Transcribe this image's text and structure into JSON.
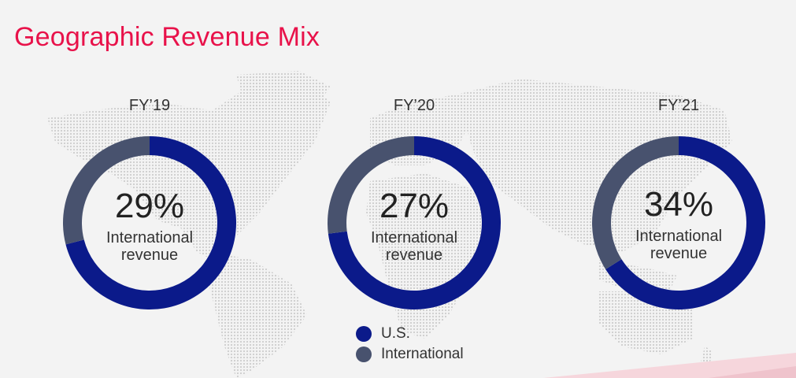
{
  "title": "Geographic Revenue Mix",
  "colors": {
    "us": "#0b1a8a",
    "international": "#48526e",
    "title": "#e8124a"
  },
  "chart_data": [
    {
      "type": "pie",
      "title": "FY’19",
      "center_value": "29%",
      "center_label": "International revenue",
      "slices": [
        {
          "name": "U.S.",
          "value": 71
        },
        {
          "name": "International",
          "value": 29
        }
      ]
    },
    {
      "type": "pie",
      "title": "FY’20",
      "center_value": "27%",
      "center_label": "International revenue",
      "slices": [
        {
          "name": "U.S.",
          "value": 73
        },
        {
          "name": "International",
          "value": 27
        }
      ]
    },
    {
      "type": "pie",
      "title": "FY’21",
      "center_value": "34%",
      "center_label": "International revenue",
      "slices": [
        {
          "name": "U.S.",
          "value": 66
        },
        {
          "name": "International",
          "value": 34
        }
      ]
    }
  ],
  "legend": {
    "items": [
      {
        "label": "U.S.",
        "color_key": "us"
      },
      {
        "label": "International",
        "color_key": "international"
      }
    ]
  }
}
